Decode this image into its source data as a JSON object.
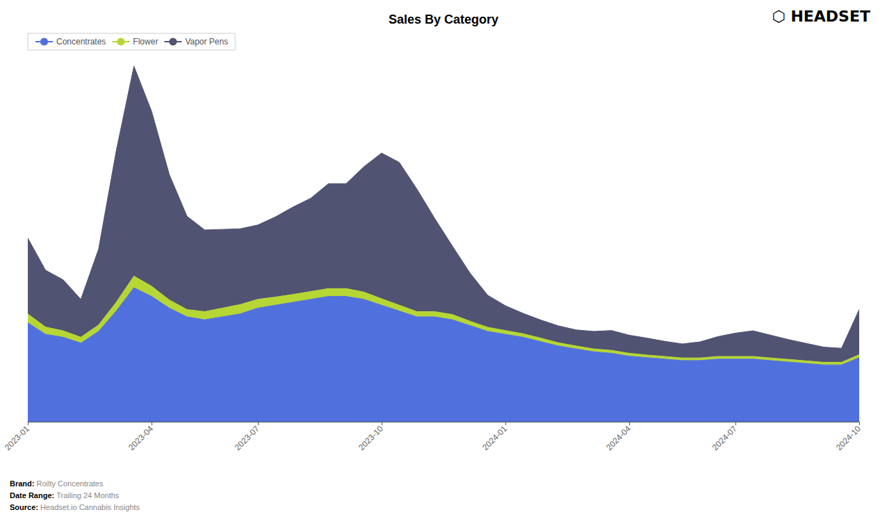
{
  "chart_data": {
    "type": "area",
    "title": "Sales By Category",
    "stacked": true,
    "legend": "upper left",
    "grid": false,
    "tick_labels": "x",
    "ylim": [
      0,
      1244.4
    ],
    "categories": [
      "2023-01",
      null,
      null,
      null,
      null,
      null,
      null,
      "2023-04",
      null,
      null,
      null,
      null,
      null,
      "2023-07",
      null,
      null,
      null,
      null,
      null,
      null,
      "2023-10",
      null,
      null,
      null,
      null,
      null,
      null,
      "2024-01",
      null,
      null,
      null,
      null,
      null,
      null,
      "2024-04",
      null,
      null,
      null,
      null,
      null,
      "2024-07",
      null,
      null,
      null,
      null,
      null,
      null,
      "2024-10"
    ],
    "series": [
      {
        "name": "Concentrates",
        "values": [
          340,
          300,
          290,
          270,
          310,
          380,
          460,
          430,
          390,
          360,
          350,
          360,
          370,
          390,
          400,
          410,
          420,
          430,
          430,
          420,
          400,
          380,
          360,
          360,
          350,
          330,
          310,
          300,
          290,
          275,
          260,
          250,
          240,
          235,
          225,
          220,
          215,
          210,
          210,
          215,
          215,
          215,
          210,
          205,
          200,
          195,
          195,
          220
        ]
      },
      {
        "name": "Flower",
        "values": [
          30,
          25,
          22,
          20,
          22,
          30,
          40,
          35,
          28,
          25,
          28,
          30,
          32,
          30,
          28,
          27,
          27,
          27,
          27,
          25,
          22,
          20,
          18,
          18,
          18,
          15,
          14,
          13,
          12,
          12,
          11,
          10,
          10,
          10,
          10,
          9,
          9,
          9,
          9,
          9,
          9,
          9,
          9,
          9,
          9,
          9,
          9,
          10
        ]
      },
      {
        "name": "Vapor Pens",
        "values": [
          260,
          195,
          175,
          130,
          260,
          520,
          720,
          600,
          430,
          320,
          280,
          270,
          260,
          255,
          275,
          300,
          320,
          360,
          360,
          430,
          500,
          490,
          420,
          320,
          235,
          165,
          110,
          85,
          70,
          62,
          58,
          55,
          60,
          68,
          62,
          58,
          52,
          48,
          55,
          68,
          80,
          88,
          78,
          68,
          60,
          52,
          48,
          155
        ]
      }
    ],
    "annotations": [
      {
        "label": "Brand:",
        "text": "Roilty Concentrates"
      },
      {
        "label": "Date Range:",
        "text": "Trailing 24 Months"
      },
      {
        "label": "Source:",
        "text": "Headset.io Cannabis Insights"
      },
      {
        "text": "⬡ HEADSET"
      }
    ]
  }
}
